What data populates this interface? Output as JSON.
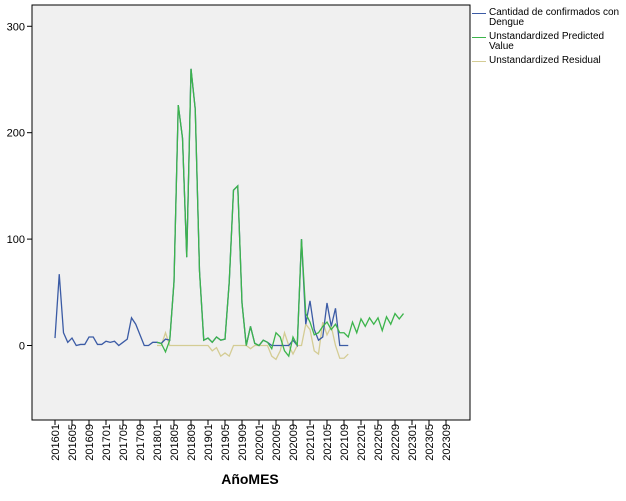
{
  "chart_data": {
    "type": "line",
    "x_label": "AñoMES",
    "categories": [
      "201601",
      null,
      null,
      null,
      "201605",
      null,
      null,
      null,
      "201609",
      null,
      null,
      null,
      "201701",
      null,
      null,
      null,
      "201705",
      null,
      null,
      null,
      "201709",
      null,
      null,
      null,
      "201801",
      null,
      null,
      null,
      "201805",
      null,
      null,
      null,
      "201809",
      null,
      null,
      null,
      "201901",
      null,
      null,
      null,
      "201905",
      null,
      null,
      null,
      "201909",
      null,
      null,
      null,
      "202001",
      null,
      null,
      null,
      "202005",
      null,
      null,
      null,
      "202009",
      null,
      null,
      null,
      "202101",
      null,
      null,
      null,
      "202105",
      null,
      null,
      null,
      "202109",
      null,
      null,
      null,
      "202201",
      null,
      null,
      null,
      "202205",
      null,
      null,
      null,
      "202209",
      null,
      null,
      null,
      "202301",
      null,
      null,
      null,
      "202305",
      null,
      null,
      null,
      "202309",
      null,
      null,
      null
    ],
    "series": [
      {
        "name": "Cantidad de confirmados con Dengue",
        "color": "#3b5ba5",
        "values": [
          7,
          67,
          12,
          3,
          7,
          0,
          1,
          1,
          8,
          8,
          1,
          1,
          4,
          3,
          4,
          0,
          3,
          6,
          26,
          20,
          10,
          0,
          0,
          3,
          3,
          2,
          6,
          5,
          60,
          226,
          195,
          83,
          260,
          222,
          70,
          5,
          7,
          3,
          8,
          5,
          6,
          60,
          146,
          150,
          40,
          0,
          18,
          2,
          0,
          5,
          3,
          0,
          0,
          0,
          0,
          0,
          5,
          0,
          100,
          20,
          42,
          15,
          5,
          8,
          40,
          18,
          35,
          0,
          0,
          0,
          null,
          null,
          null,
          null,
          null,
          null,
          null,
          null,
          null,
          null,
          null,
          null,
          null,
          null,
          null,
          null,
          null,
          null,
          null,
          null,
          null,
          null,
          null,
          null,
          null,
          null
        ]
      },
      {
        "name": "Unstandardized Predicted Value",
        "color": "#3cb44b",
        "values": [
          null,
          null,
          null,
          null,
          null,
          null,
          null,
          null,
          null,
          null,
          null,
          null,
          null,
          null,
          null,
          null,
          null,
          null,
          null,
          null,
          null,
          null,
          null,
          null,
          3,
          2,
          -6,
          5,
          60,
          226,
          195,
          83,
          260,
          222,
          70,
          5,
          7,
          3,
          8,
          5,
          6,
          60,
          146,
          150,
          40,
          0,
          18,
          2,
          0,
          5,
          3,
          -3,
          12,
          8,
          -5,
          -10,
          8,
          0,
          100,
          30,
          22,
          10,
          12,
          18,
          22,
          15,
          20,
          12,
          12,
          8,
          22,
          12,
          25,
          18,
          26,
          20,
          26,
          14,
          27,
          20,
          30,
          25,
          30,
          null,
          null,
          null,
          null,
          null,
          null,
          null,
          null,
          null,
          null,
          null,
          null,
          null
        ]
      },
      {
        "name": "Unstandardized Residual",
        "color": "#d4cc94",
        "values": [
          null,
          null,
          null,
          null,
          null,
          null,
          null,
          null,
          null,
          null,
          null,
          null,
          null,
          null,
          null,
          null,
          null,
          null,
          null,
          null,
          null,
          null,
          null,
          null,
          0,
          0,
          12,
          0,
          0,
          0,
          0,
          0,
          0,
          0,
          0,
          0,
          0,
          -5,
          -2,
          -10,
          -7,
          -10,
          0,
          0,
          0,
          0,
          -3,
          0,
          0,
          0,
          0,
          -10,
          -13,
          -5,
          12,
          0,
          -8,
          0,
          0,
          20,
          15,
          -5,
          -8,
          22,
          10,
          18,
          0,
          -12,
          -12,
          -8,
          null,
          null,
          null,
          null,
          null,
          null,
          null,
          null,
          null,
          null,
          null,
          null,
          null,
          null,
          null,
          null,
          null,
          null,
          null,
          null,
          null,
          null,
          null,
          null,
          null,
          null
        ]
      }
    ],
    "ylim": [
      -70,
      320
    ],
    "yticks": [
      0,
      100,
      200,
      300
    ]
  }
}
